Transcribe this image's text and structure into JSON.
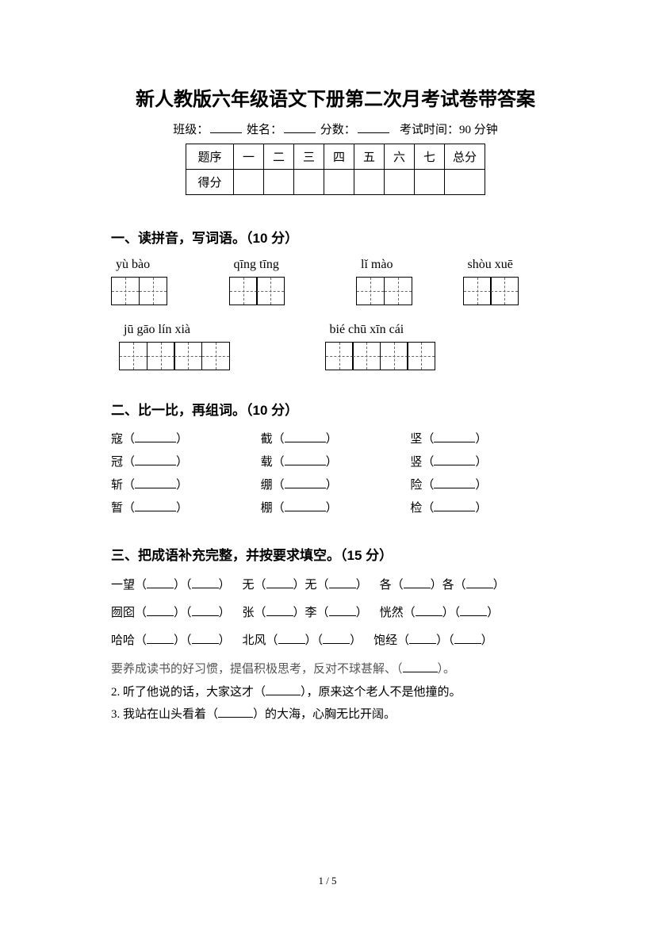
{
  "title": "新人教版六年级语文下册第二次月考试卷带答案",
  "meta": {
    "class_label": "班级：",
    "name_label": "姓名：",
    "score_label": "分数：",
    "time_label": "考试时间：90 分钟"
  },
  "score_table": {
    "header": [
      "题序",
      "一",
      "二",
      "三",
      "四",
      "五",
      "六",
      "七",
      "总分"
    ],
    "row2": "得分"
  },
  "sections": {
    "s1": {
      "title": "一、读拼音，写词语。（10 分）",
      "row1": [
        {
          "pinyin": "yù  bào",
          "boxes": 2,
          "ml": 0
        },
        {
          "pinyin": "qīng  tīng",
          "boxes": 2,
          "ml": 78
        },
        {
          "pinyin": "lǐ  mào",
          "boxes": 2,
          "ml": 90
        },
        {
          "pinyin": "shòu  xuē",
          "boxes": 2,
          "ml": 64
        }
      ],
      "row2": [
        {
          "pinyin": "jū  gāo   lín  xià",
          "boxes": 4,
          "ml": 10
        },
        {
          "pinyin": "bié  chū  xīn  cái",
          "boxes": 4,
          "ml": 120
        }
      ]
    },
    "s2": {
      "title": "二、比一比，再组词。（10 分）",
      "items": [
        [
          "寇",
          "截",
          "坚"
        ],
        [
          "冠",
          "载",
          "竖"
        ],
        [
          "斩",
          "绷",
          "险"
        ],
        [
          "暂",
          "棚",
          "检"
        ]
      ]
    },
    "s3": {
      "title": "三、把成语补充完整，并按要求填空。（15 分）",
      "idioms_rows": [
        [
          {
            "pre": "一望",
            "blanks": 2
          },
          {
            "pre": "无",
            "mid": "无",
            "blanks": 2,
            "pattern": "mid"
          },
          {
            "pre": "各",
            "mid": "各",
            "blanks": 2,
            "pattern": "mid"
          }
        ],
        [
          {
            "pre": "囫囵",
            "blanks": 2
          },
          {
            "pre": "张",
            "mid": "李",
            "blanks": 2,
            "pattern": "mid"
          },
          {
            "pre": "恍然",
            "blanks": 2
          }
        ],
        [
          {
            "pre": "哈哈",
            "blanks": 2
          },
          {
            "pre": "北风",
            "blanks": 2
          },
          {
            "pre": "饱经",
            "blanks": 2
          }
        ]
      ],
      "sent1": "要养成读书的好习惯，提倡积极思考，反对不球甚解、",
      "sent1_tail": "。",
      "sent2_pre": "2. 听了他说的话，大家这才",
      "sent2_post": "，原来这个老人不是他撞的。",
      "sent3_pre": "3. 我站在山头看着",
      "sent3_post": "的大海，心胸无比开阔。"
    }
  },
  "page_num": "1 / 5"
}
